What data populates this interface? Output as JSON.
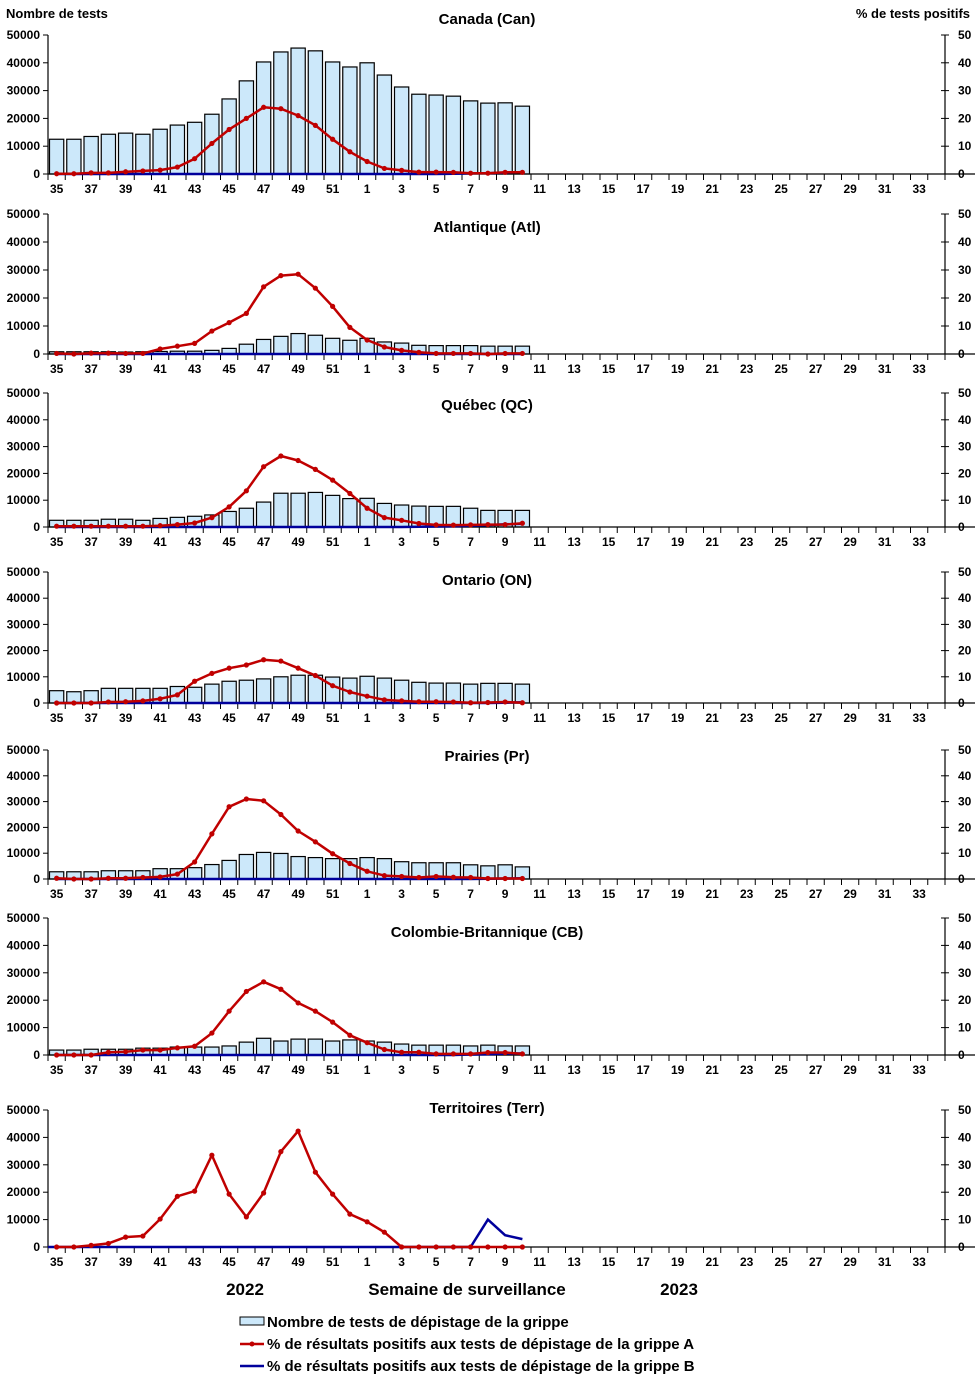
{
  "chart_data": {
    "type": "bar",
    "left_axis_title": "Nombre de tests",
    "right_axis_title": "% de tests positifs",
    "xlabel": "Semaine de surveillance",
    "year_labels": [
      "2022",
      "2023"
    ],
    "x_weeks": [
      35,
      36,
      37,
      38,
      39,
      40,
      41,
      42,
      43,
      44,
      45,
      46,
      47,
      48,
      49,
      50,
      51,
      52,
      1,
      2,
      3,
      4,
      5,
      6,
      7,
      8,
      9,
      10,
      11,
      12,
      13,
      14,
      15,
      16,
      17,
      18,
      19,
      20,
      21,
      22,
      23,
      24,
      25,
      26,
      27,
      28,
      29,
      30,
      31,
      32,
      33,
      34
    ],
    "x_tick_labels": [
      "35",
      "37",
      "39",
      "41",
      "43",
      "45",
      "47",
      "49",
      "51",
      "1",
      "3",
      "5",
      "7",
      "9",
      "11",
      "13",
      "15",
      "17",
      "19",
      "21",
      "23",
      "25",
      "27",
      "29",
      "31",
      "33"
    ],
    "left_ylim": [
      0,
      50000
    ],
    "left_yticks": [
      "0",
      "10000",
      "20000",
      "30000",
      "40000",
      "50000"
    ],
    "right_ylim": [
      0,
      50
    ],
    "right_yticks": [
      "0",
      "10",
      "20",
      "30",
      "40",
      "50"
    ],
    "legend": {
      "tests": "Nombre de tests de dépistage de la grippe",
      "flu_a": "% de résultats positifs aux tests de dépistage de la grippe A",
      "flu_b": "% de résultats positifs aux tests de dépistage de la grippe B",
      "placement": "bottom-center"
    },
    "colors": {
      "bar_fill": "#cce8fa",
      "bar_stroke": "#000000",
      "flu_a": "#c00000",
      "flu_b": "#00009c"
    },
    "panels": [
      {
        "title": "Canada (Can)",
        "tests": [
          12500,
          12500,
          13500,
          14300,
          14700,
          14300,
          16100,
          17600,
          18600,
          21500,
          27000,
          33500,
          40300,
          43900,
          45300,
          44300,
          40300,
          38500,
          40000,
          35600,
          31300,
          28700,
          28400,
          28000,
          26300,
          25500,
          25600,
          24400
        ],
        "flu_a": [
          0.1,
          0.1,
          0.4,
          0.4,
          0.8,
          1.1,
          1.4,
          2.5,
          5.5,
          11,
          16,
          20,
          24,
          23.5,
          21,
          17.5,
          12.5,
          8,
          4.5,
          2,
          1.3,
          0.7,
          0.7,
          0.6,
          0.3,
          0.3,
          0.6,
          0.6
        ],
        "flu_b": [
          0,
          0,
          0,
          0,
          0,
          0,
          0,
          0,
          0,
          0,
          0,
          0,
          0,
          0,
          0,
          0,
          0,
          0,
          0,
          0,
          0,
          0,
          0,
          0.1,
          0.2,
          0.3,
          0.5,
          0.7
        ]
      },
      {
        "title": "Atlantique (Atl)",
        "tests": [
          800,
          800,
          800,
          800,
          700,
          800,
          900,
          1000,
          1000,
          1300,
          2000,
          3500,
          5200,
          6300,
          7300,
          6700,
          5600,
          4900,
          5600,
          4300,
          3900,
          3100,
          3000,
          3000,
          3000,
          2800,
          2800,
          2800
        ],
        "flu_a": [
          0.2,
          0,
          0.3,
          0.3,
          0.2,
          0.2,
          1.8,
          2.8,
          3.8,
          8.2,
          11.2,
          14.5,
          24,
          28,
          28.5,
          23.5,
          17,
          9.5,
          5,
          2.5,
          1.3,
          0.6,
          0.2,
          0.2,
          0.2,
          0,
          0.2,
          0.2
        ],
        "flu_b": [
          0,
          0,
          0,
          0,
          0,
          0,
          0,
          0,
          0,
          0,
          0,
          0,
          0,
          0,
          0,
          0,
          0,
          0,
          0,
          0,
          0,
          0,
          0,
          0,
          0,
          0,
          0,
          0
        ]
      },
      {
        "title": "Québec (QC)",
        "tests": [
          2500,
          2500,
          2500,
          2900,
          2900,
          2500,
          3200,
          3600,
          4000,
          4500,
          5800,
          7000,
          9300,
          12600,
          12600,
          12900,
          11800,
          10600,
          10700,
          8800,
          8200,
          7800,
          7700,
          7700,
          7000,
          6200,
          6200,
          6200
        ],
        "flu_a": [
          0.3,
          0.3,
          0.3,
          0.3,
          0.3,
          0.3,
          0.5,
          0.9,
          1.5,
          3.5,
          7.5,
          13.5,
          22.5,
          26.5,
          24.8,
          21.5,
          17.5,
          12.5,
          7,
          3.5,
          2.5,
          1.3,
          0.8,
          0.7,
          0.8,
          0.9,
          0.9,
          1.4
        ],
        "flu_b": [
          0,
          0,
          0,
          0,
          0,
          0,
          0,
          0,
          0,
          0,
          0,
          0,
          0,
          0,
          0,
          0,
          0,
          0,
          0,
          0,
          0,
          0.1,
          0.2,
          0.3,
          0.5,
          0.7,
          1,
          1.2
        ]
      },
      {
        "title": "Ontario (ON)",
        "tests": [
          4700,
          4300,
          4700,
          5600,
          5600,
          5600,
          5600,
          6300,
          6000,
          7200,
          8300,
          8700,
          9200,
          10000,
          10600,
          10600,
          9900,
          9500,
          10200,
          9500,
          8700,
          7900,
          7600,
          7600,
          7200,
          7500,
          7500,
          7200
        ],
        "flu_a": [
          0,
          0,
          0,
          0.4,
          0.5,
          0.8,
          1.6,
          3.1,
          8.3,
          11.3,
          13.3,
          14.5,
          16.5,
          16,
          13.3,
          10.5,
          6.6,
          4.2,
          2.6,
          1.2,
          0.8,
          0.5,
          0.5,
          0.4,
          0.1,
          0.2,
          0.4,
          0.1
        ],
        "flu_b": [
          0,
          0,
          0,
          0,
          0,
          0,
          0,
          0,
          0,
          0,
          0,
          0,
          0,
          0,
          0,
          0,
          0,
          0,
          0,
          0,
          0,
          0,
          0,
          0,
          0,
          0,
          0.1,
          0.3
        ]
      },
      {
        "title": "Prairies (Pr)",
        "tests": [
          2800,
          2800,
          2800,
          3200,
          3200,
          3200,
          4000,
          4000,
          4400,
          5600,
          7200,
          9500,
          10300,
          9900,
          8700,
          8300,
          7900,
          7900,
          8300,
          7900,
          6700,
          6300,
          6300,
          6300,
          5500,
          5100,
          5500,
          4700
        ],
        "flu_a": [
          0.3,
          0,
          0,
          0.3,
          0.3,
          0.6,
          0.8,
          1.9,
          6.6,
          17.5,
          28,
          31,
          30.3,
          25,
          18.6,
          14.4,
          9.8,
          6,
          3,
          1.3,
          1,
          0.6,
          1,
          0.7,
          0.6,
          0.2,
          0.2,
          0.2
        ],
        "flu_b": [
          0,
          0,
          0,
          0,
          0,
          0,
          0,
          0,
          0,
          0,
          0,
          0,
          0,
          0,
          0,
          0,
          0,
          0,
          0,
          0,
          0,
          0,
          0,
          0,
          0,
          0.1,
          0.2,
          0.3
        ]
      },
      {
        "title": "Colombie-Britannique (CB)",
        "tests": [
          1800,
          1800,
          2100,
          2100,
          2100,
          2500,
          2500,
          2900,
          2900,
          2900,
          3300,
          4700,
          6100,
          5100,
          5800,
          5800,
          5100,
          5500,
          5100,
          4700,
          4000,
          3600,
          3600,
          3600,
          3300,
          3600,
          3300,
          3300
        ],
        "flu_a": [
          0,
          0,
          0,
          1,
          1.2,
          1.8,
          1.8,
          2.6,
          3.2,
          8,
          16,
          23.2,
          26.7,
          24,
          19,
          16,
          12,
          7.2,
          4.5,
          2,
          1,
          1,
          0.4,
          0.4,
          0.4,
          0.9,
          0.9,
          0.4
        ],
        "flu_b": [
          0,
          0,
          0,
          0,
          0,
          0,
          0,
          0,
          0,
          0,
          0,
          0,
          0,
          0,
          0,
          0,
          0,
          0,
          0,
          0,
          0,
          0,
          0,
          0,
          0.2,
          0.3,
          0.5,
          0.6
        ]
      },
      {
        "title": "Territoires (Terr)",
        "tests": [],
        "flu_a": [
          0,
          0,
          0.6,
          1.3,
          3.6,
          4,
          10.2,
          18.5,
          20.4,
          33.5,
          19.3,
          11,
          19.7,
          34.8,
          42.3,
          27.3,
          19.3,
          12,
          9.2,
          5.4,
          0,
          0,
          0,
          0,
          0,
          0,
          0,
          0
        ],
        "flu_b": [
          0,
          0,
          0,
          0,
          0,
          0,
          0,
          0,
          0,
          0,
          0,
          0,
          0,
          0,
          0,
          0,
          0,
          0,
          0,
          0,
          0,
          0,
          0,
          0,
          0,
          10,
          4.3,
          2.9
        ]
      }
    ]
  }
}
